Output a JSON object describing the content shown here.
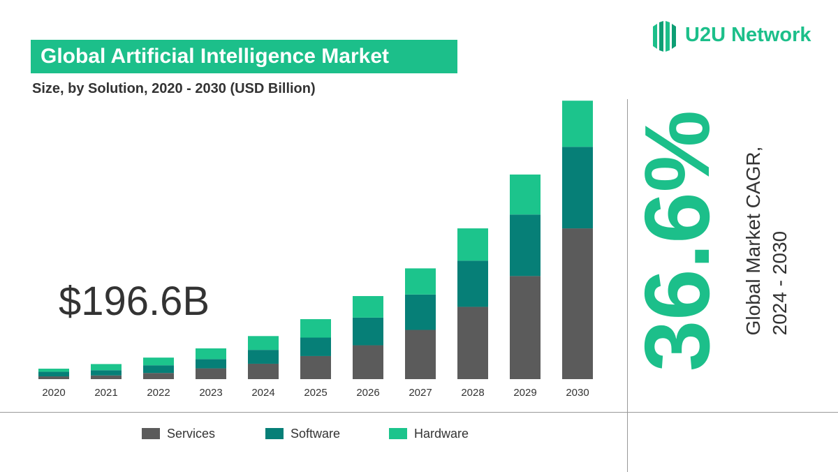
{
  "header": {
    "title": "Global Artificial Intelligence Market",
    "subtitle": "Size, by Solution, 2020 - 2030 (USD Billion)"
  },
  "brand": {
    "name": "U2U Network",
    "icon": "u2u-logo-icon"
  },
  "highlight": {
    "value": "$196.6B"
  },
  "cagr": {
    "value": "36.6%",
    "label_line1": "Global Market CAGR,",
    "label_line2": "2024 - 2030"
  },
  "colors": {
    "accent": "#1cbf8a",
    "services": "#5b5b5b",
    "software": "#067f77",
    "hardware": "#1cc48c"
  },
  "chart_data": {
    "type": "bar",
    "stacked": true,
    "categories": [
      "2020",
      "2021",
      "2022",
      "2023",
      "2024",
      "2025",
      "2026",
      "2027",
      "2028",
      "2029",
      "2030"
    ],
    "series": [
      {
        "name": "Services",
        "color": "#5b5b5b",
        "values": [
          9,
          12,
          20,
          35,
          50,
          75,
          110,
          160,
          235,
          335,
          490
        ]
      },
      {
        "name": "Software",
        "color": "#067f77",
        "values": [
          15,
          17,
          25,
          30,
          45,
          60,
          90,
          115,
          150,
          200,
          265
        ]
      },
      {
        "name": "Hardware",
        "color": "#1cc48c",
        "values": [
          10,
          20,
          25,
          35,
          45,
          60,
          70,
          85,
          105,
          130,
          150
        ]
      }
    ],
    "ylim": [
      0,
      910
    ],
    "grid": false,
    "legend": "bottom"
  }
}
